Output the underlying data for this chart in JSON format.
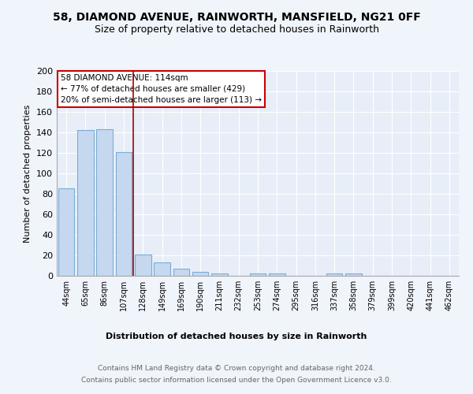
{
  "title": "58, DIAMOND AVENUE, RAINWORTH, MANSFIELD, NG21 0FF",
  "subtitle": "Size of property relative to detached houses in Rainworth",
  "xlabel": "Distribution of detached houses by size in Rainworth",
  "ylabel": "Number of detached properties",
  "categories": [
    "44sqm",
    "65sqm",
    "86sqm",
    "107sqm",
    "128sqm",
    "149sqm",
    "169sqm",
    "190sqm",
    "211sqm",
    "232sqm",
    "253sqm",
    "274sqm",
    "295sqm",
    "316sqm",
    "337sqm",
    "358sqm",
    "379sqm",
    "399sqm",
    "420sqm",
    "441sqm",
    "462sqm"
  ],
  "values": [
    85,
    142,
    143,
    121,
    21,
    13,
    7,
    4,
    2,
    0,
    2,
    2,
    0,
    0,
    2,
    2,
    0,
    0,
    0,
    0,
    0
  ],
  "bar_color": "#c5d8f0",
  "bar_edge_color": "#7aadd4",
  "vline_x": 3.5,
  "vline_color": "#aa0000",
  "annotation_text": "58 DIAMOND AVENUE: 114sqm\n← 77% of detached houses are smaller (429)\n20% of semi-detached houses are larger (113) →",
  "annotation_box_color": "white",
  "annotation_box_edge": "#cc0000",
  "ylim": [
    0,
    200
  ],
  "yticks": [
    0,
    20,
    40,
    60,
    80,
    100,
    120,
    140,
    160,
    180,
    200
  ],
  "footer_line1": "Contains HM Land Registry data © Crown copyright and database right 2024.",
  "footer_line2": "Contains public sector information licensed under the Open Government Licence v3.0.",
  "bg_color": "#f0f4fb",
  "plot_bg_color": "#e8eef8",
  "grid_color": "#ffffff",
  "spine_color": "#aaaaaa",
  "title_fontsize": 10,
  "subtitle_fontsize": 9,
  "ylabel_fontsize": 8,
  "tick_fontsize": 8,
  "xtick_fontsize": 7,
  "annotation_fontsize": 7.5,
  "xlabel_fontsize": 8,
  "footer_fontsize": 6.5
}
